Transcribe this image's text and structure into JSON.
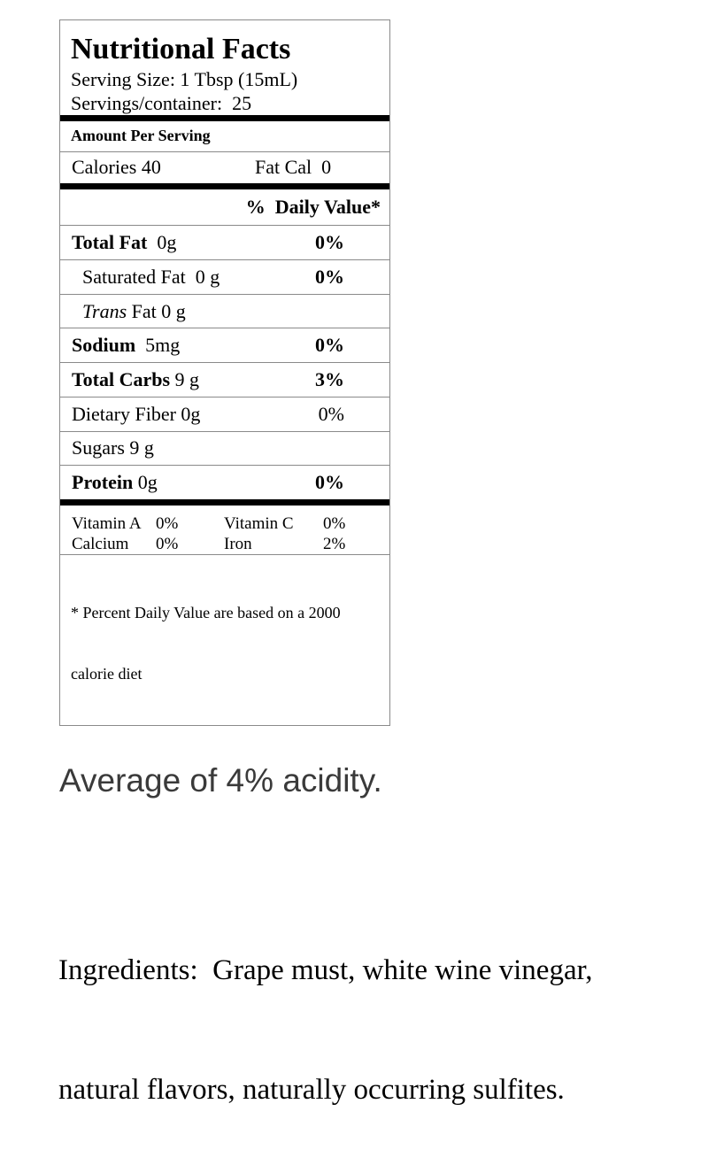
{
  "nutrition_label": {
    "title": "Nutritional Facts",
    "serving_size": "Serving Size: 1 Tbsp (15mL)",
    "servings_per_container": "Servings/container:  25",
    "amount_per_serving": "Amount Per Serving",
    "calories": "Calories 40",
    "fat_cal": "Fat Cal  0",
    "daily_value_header": "%  Daily Value*",
    "rows": [
      {
        "bold": "Total Fat",
        "rest": "  0g",
        "dv": "0%"
      },
      {
        "rest": "Saturated Fat  0 g",
        "dv": "0%"
      },
      {
        "italic": "Trans",
        "rest": " Fat 0 g",
        "dv": ""
      },
      {
        "bold": "Sodium",
        "rest": "  5mg",
        "dv": "0%"
      },
      {
        "bold": "Total Carbs",
        "rest": " 9 g",
        "dv": "3%"
      },
      {
        "rest": "Dietary Fiber 0g",
        "dv": "0%"
      },
      {
        "rest": "Sugars 9 g",
        "dv": ""
      },
      {
        "bold": "Protein",
        "rest": " 0g",
        "dv": "0%"
      }
    ],
    "vitamins": {
      "vitamin_a_label": "Vitamin A",
      "vitamin_a_value": "0%",
      "vitamin_c_label": "Vitamin C",
      "vitamin_c_value": "0%",
      "calcium_label": "Calcium",
      "calcium_value": "0%",
      "iron_label": "Iron",
      "iron_value": "2%"
    },
    "footnote_line1": "* Percent Daily Value are based on a 2000",
    "footnote_line2": "calorie diet"
  },
  "acidity_note": "Average of 4% acidity.",
  "ingredients_line1": "Ingredients:  Grape must, white wine vinegar,",
  "ingredients_line2": "natural flavors, naturally occurring sulfites.",
  "colors": {
    "text": "#000000",
    "border_gray": "#8a8a8a",
    "thick_bar": "#000000",
    "acidity_text": "#3a3a3a",
    "background": "#ffffff"
  }
}
